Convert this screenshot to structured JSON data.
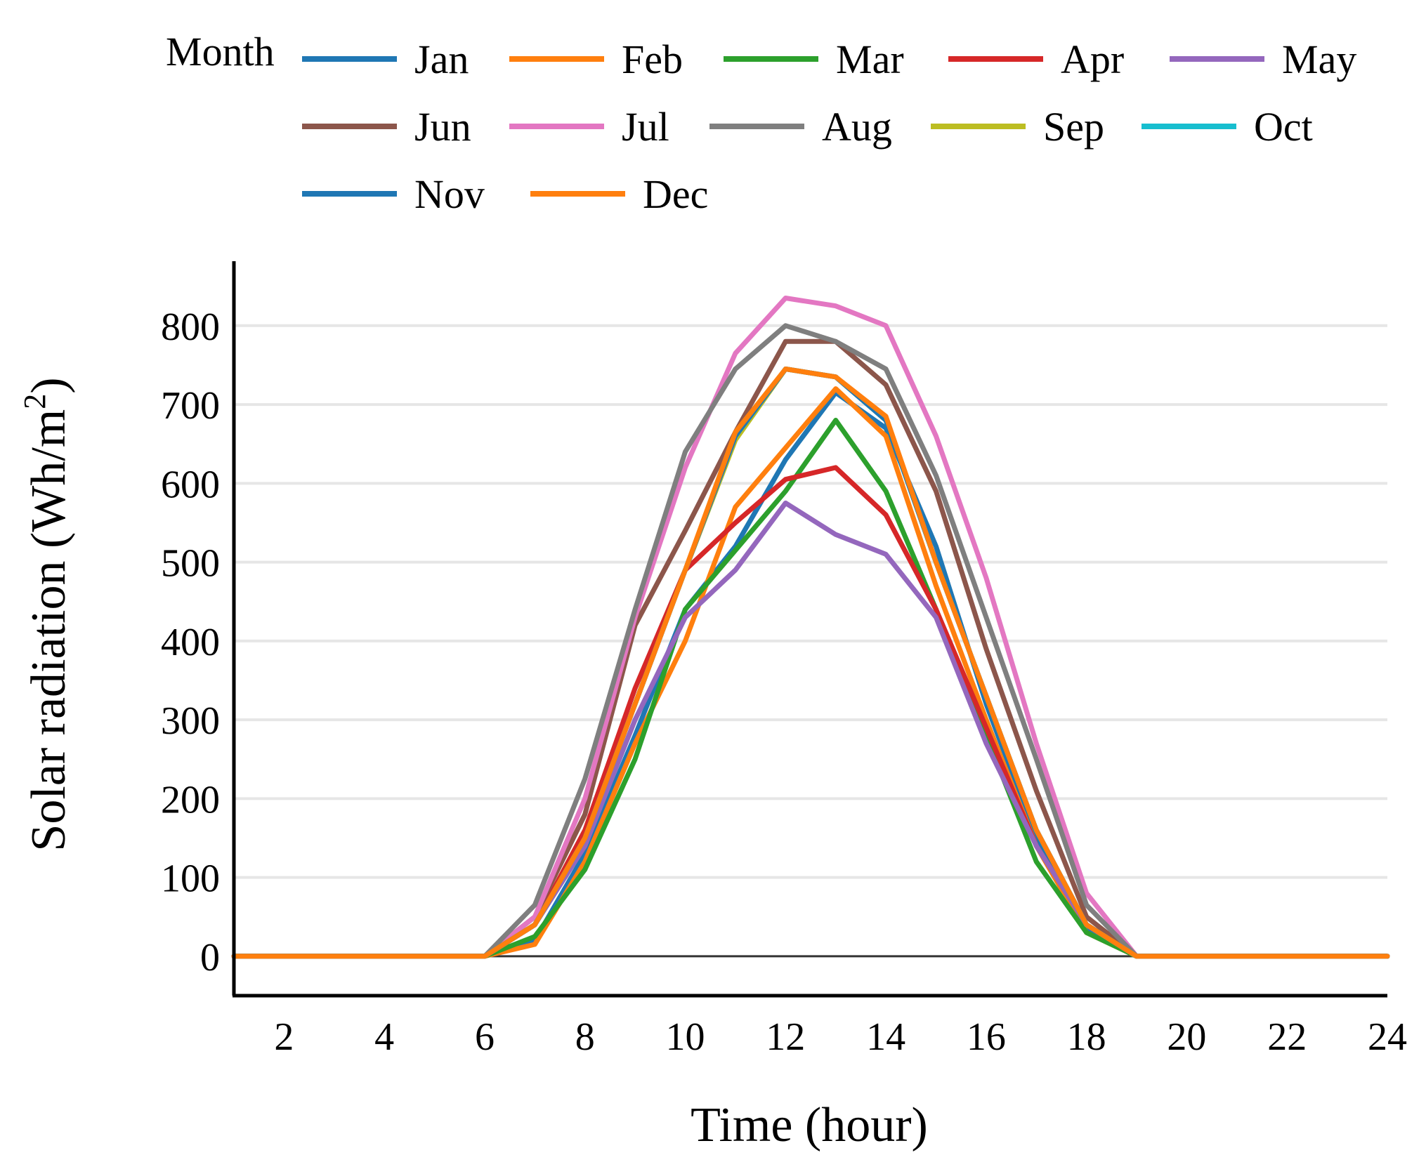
{
  "chart_data": {
    "type": "line",
    "legend": {
      "title": "Month",
      "placement": "top"
    },
    "xlabel": "Time (hour)",
    "ylabel_prefix": "Solar radiation (Wh/m",
    "ylabel_sup": "2",
    "ylabel_suffix": ")",
    "xlim": [
      1,
      24
    ],
    "ylim": [
      -50,
      880
    ],
    "grid": true,
    "x_ticks": [
      2,
      4,
      6,
      8,
      10,
      12,
      14,
      16,
      18,
      20,
      22,
      24
    ],
    "y_ticks": [
      0,
      100,
      200,
      300,
      400,
      500,
      600,
      700,
      800
    ],
    "x": [
      1,
      2,
      3,
      4,
      5,
      6,
      7,
      8,
      9,
      10,
      11,
      12,
      13,
      14,
      15,
      16,
      17,
      18,
      19,
      20,
      21,
      22,
      23,
      24
    ],
    "series": [
      {
        "name": "Jan",
        "color": "#1f77b4",
        "values": [
          0,
          0,
          0,
          0,
          0,
          0,
          20,
          130,
          280,
          440,
          520,
          630,
          715,
          670,
          520,
          320,
          150,
          35,
          0,
          0,
          0,
          0,
          0,
          0
        ]
      },
      {
        "name": "Feb",
        "color": "#ff7f0e",
        "values": [
          0,
          0,
          0,
          0,
          0,
          0,
          15,
          120,
          270,
          400,
          570,
          645,
          720,
          660,
          470,
          300,
          140,
          30,
          0,
          0,
          0,
          0,
          0,
          0
        ]
      },
      {
        "name": "Mar",
        "color": "#2ca02c",
        "values": [
          0,
          0,
          0,
          0,
          0,
          0,
          25,
          110,
          250,
          440,
          515,
          590,
          680,
          590,
          440,
          280,
          120,
          30,
          0,
          0,
          0,
          0,
          0,
          0
        ]
      },
      {
        "name": "Apr",
        "color": "#d62728",
        "values": [
          0,
          0,
          0,
          0,
          0,
          0,
          40,
          160,
          340,
          490,
          550,
          605,
          620,
          560,
          440,
          290,
          140,
          40,
          0,
          0,
          0,
          0,
          0,
          0
        ]
      },
      {
        "name": "May",
        "color": "#9467bd",
        "values": [
          0,
          0,
          0,
          0,
          0,
          0,
          40,
          140,
          300,
          430,
          490,
          575,
          535,
          510,
          430,
          270,
          140,
          40,
          0,
          0,
          0,
          0,
          0,
          0
        ]
      },
      {
        "name": "Jun",
        "color": "#8c564b",
        "values": [
          0,
          0,
          0,
          0,
          0,
          0,
          50,
          180,
          420,
          540,
          665,
          780,
          780,
          725,
          590,
          390,
          210,
          50,
          0,
          0,
          0,
          0,
          0,
          0
        ]
      },
      {
        "name": "Jul",
        "color": "#e377c2",
        "values": [
          0,
          0,
          0,
          0,
          0,
          0,
          50,
          200,
          430,
          620,
          765,
          835,
          825,
          800,
          660,
          480,
          270,
          80,
          0,
          0,
          0,
          0,
          0,
          0
        ]
      },
      {
        "name": "Aug",
        "color": "#7f7f7f",
        "values": [
          0,
          0,
          0,
          0,
          0,
          0,
          65,
          225,
          440,
          640,
          745,
          800,
          780,
          745,
          610,
          430,
          250,
          65,
          0,
          0,
          0,
          0,
          0,
          0
        ]
      },
      {
        "name": "Sep",
        "color": "#bcbd22",
        "values": [
          0,
          0,
          0,
          0,
          0,
          0,
          40,
          150,
          320,
          490,
          655,
          745,
          735,
          680,
          500,
          330,
          160,
          40,
          0,
          0,
          0,
          0,
          0,
          0
        ]
      },
      {
        "name": "Oct",
        "color": "#17becf",
        "values": [
          0,
          0,
          0,
          0,
          0,
          0,
          40,
          150,
          320,
          490,
          660,
          745,
          735,
          680,
          500,
          330,
          160,
          40,
          0,
          0,
          0,
          0,
          0,
          0
        ]
      },
      {
        "name": "Nov",
        "color": "#1f77b4",
        "values": [
          0,
          0,
          0,
          0,
          0,
          0,
          40,
          150,
          320,
          490,
          660,
          745,
          735,
          680,
          500,
          330,
          160,
          40,
          0,
          0,
          0,
          0,
          0,
          0
        ]
      },
      {
        "name": "Dec",
        "color": "#ff7f0e",
        "values": [
          0,
          0,
          0,
          0,
          0,
          0,
          40,
          150,
          320,
          490,
          665,
          745,
          735,
          685,
          500,
          330,
          160,
          40,
          0,
          0,
          0,
          0,
          0,
          0
        ]
      }
    ]
  }
}
